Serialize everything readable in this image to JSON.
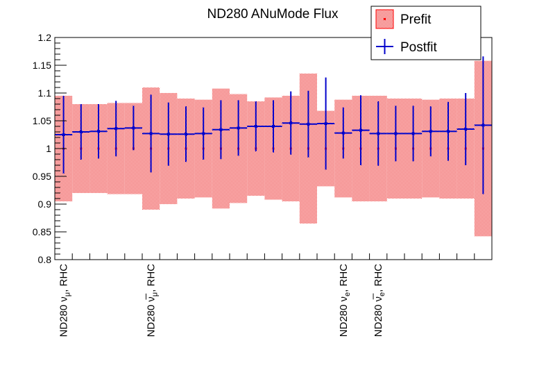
{
  "chart_data": {
    "type": "line",
    "title": "ND280 ANuMode Flux",
    "xlabel": "",
    "ylabel": "",
    "ylim": [
      0.8,
      1.2
    ],
    "ytick_labels": [
      "0.8",
      "0.85",
      "0.9",
      "0.95",
      "1",
      "1.05",
      "1.1",
      "1.15",
      "1.2"
    ],
    "ytick_values": [
      0.8,
      0.85,
      0.9,
      0.95,
      1.0,
      1.05,
      1.1,
      1.15,
      1.2
    ],
    "grid": false,
    "legend_position": "top-right",
    "colors": {
      "prefit": "#ff0000",
      "prefit_band": "#f4a0a0",
      "postfit": "#0000cc"
    },
    "category_labels": [
      {
        "bin": 0,
        "pre": "ND280 ",
        "sym": "ν",
        "bar": false,
        "sub": "μ",
        "post": ", RHC"
      },
      {
        "bin": 5,
        "pre": "ND280 ",
        "sym": "ν",
        "bar": true,
        "sub": "μ",
        "post": ", RHC"
      },
      {
        "bin": 16,
        "pre": "ND280 ",
        "sym": "ν",
        "bar": false,
        "sub": "e",
        "post": ", RHC"
      },
      {
        "bin": 18,
        "pre": "ND280 ",
        "sym": "ν",
        "bar": true,
        "sub": "e",
        "post": ", RHC"
      }
    ],
    "bins": 25,
    "series": [
      {
        "name": "Prefit",
        "values": [
          1,
          1,
          1,
          1,
          1,
          1,
          1,
          1,
          1,
          1,
          1,
          1,
          1,
          1,
          1,
          1,
          1,
          1,
          1,
          1,
          1,
          1,
          1,
          1,
          1
        ],
        "errors": [
          0.095,
          0.08,
          0.08,
          0.082,
          0.082,
          0.11,
          0.1,
          0.09,
          0.088,
          0.108,
          0.098,
          0.085,
          0.092,
          0.095,
          0.135,
          0.068,
          0.088,
          0.095,
          0.095,
          0.09,
          0.09,
          0.088,
          0.09,
          0.09,
          0.158
        ]
      },
      {
        "name": "Postfit",
        "values": [
          1.025,
          1.03,
          1.031,
          1.036,
          1.037,
          1.027,
          1.026,
          1.026,
          1.027,
          1.034,
          1.037,
          1.04,
          1.04,
          1.046,
          1.044,
          1.045,
          1.028,
          1.033,
          1.027,
          1.027,
          1.027,
          1.031,
          1.031,
          1.035,
          1.042
        ],
        "errors": [
          0.07,
          0.05,
          0.049,
          0.05,
          0.04,
          0.07,
          0.057,
          0.05,
          0.047,
          0.053,
          0.05,
          0.045,
          0.047,
          0.057,
          0.06,
          0.083,
          0.046,
          0.063,
          0.058,
          0.05,
          0.05,
          0.045,
          0.053,
          0.065,
          0.124
        ]
      }
    ]
  }
}
